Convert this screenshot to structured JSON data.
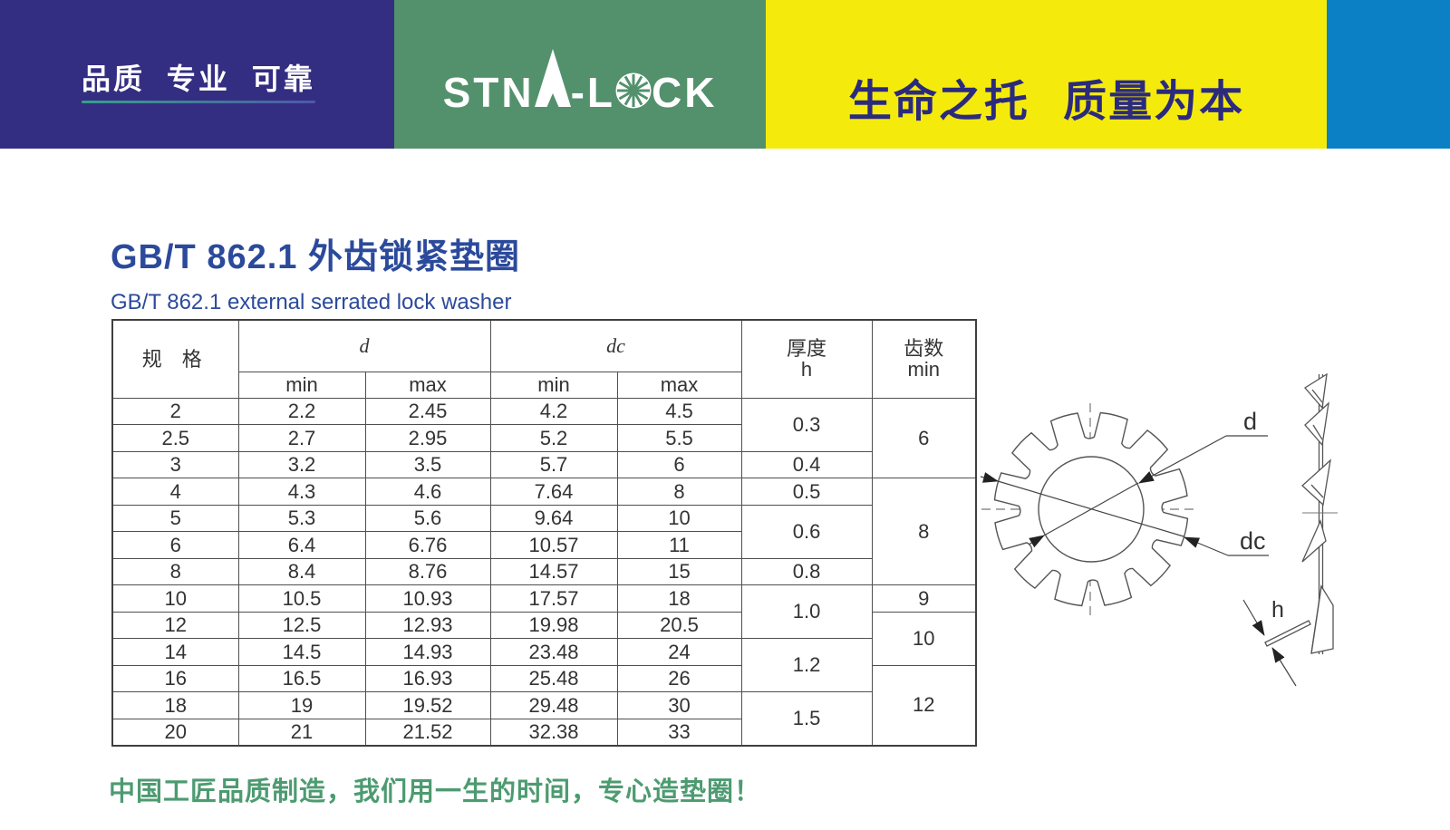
{
  "header": {
    "slogan_left": "品质 专业 可靠",
    "slogan_right": "生命之托 质量为本",
    "logo": {
      "part1": "STN",
      "a": "A",
      "part2": "-L",
      "o": "O",
      "part3": "CK",
      "full": "STNA-LOCK"
    },
    "colors": {
      "navy": "#342e82",
      "green": "#52916c",
      "yellow": "#f4eb0c",
      "blue": "#0c80c5"
    }
  },
  "title": {
    "zh": "GB/T 862.1 外齿锁紧垫圈",
    "en": "GB/T 862.1 external serrated lock washer"
  },
  "table": {
    "col_spec": "规 格",
    "col_d": "d",
    "col_dc": "dc",
    "col_h_line1": "厚度",
    "col_h_line2": "h",
    "col_teeth_line1": "齿数",
    "col_teeth_line2": "min",
    "sub_min": "min",
    "sub_max": "max",
    "rows": [
      {
        "spec": "2",
        "dmin": "2.2",
        "dmax": "2.45",
        "dcmin": "4.2",
        "dcmax": "4.5"
      },
      {
        "spec": "2.5",
        "dmin": "2.7",
        "dmax": "2.95",
        "dcmin": "5.2",
        "dcmax": "5.5"
      },
      {
        "spec": "3",
        "dmin": "3.2",
        "dmax": "3.5",
        "dcmin": "5.7",
        "dcmax": "6"
      },
      {
        "spec": "4",
        "dmin": "4.3",
        "dmax": "4.6",
        "dcmin": "7.64",
        "dcmax": "8"
      },
      {
        "spec": "5",
        "dmin": "5.3",
        "dmax": "5.6",
        "dcmin": "9.64",
        "dcmax": "10"
      },
      {
        "spec": "6",
        "dmin": "6.4",
        "dmax": "6.76",
        "dcmin": "10.57",
        "dcmax": "11"
      },
      {
        "spec": "8",
        "dmin": "8.4",
        "dmax": "8.76",
        "dcmin": "14.57",
        "dcmax": "15"
      },
      {
        "spec": "10",
        "dmin": "10.5",
        "dmax": "10.93",
        "dcmin": "17.57",
        "dcmax": "18"
      },
      {
        "spec": "12",
        "dmin": "12.5",
        "dmax": "12.93",
        "dcmin": "19.98",
        "dcmax": "20.5"
      },
      {
        "spec": "14",
        "dmin": "14.5",
        "dmax": "14.93",
        "dcmin": "23.48",
        "dcmax": "24"
      },
      {
        "spec": "16",
        "dmin": "16.5",
        "dmax": "16.93",
        "dcmin": "25.48",
        "dcmax": "26"
      },
      {
        "spec": "18",
        "dmin": "19",
        "dmax": "19.52",
        "dcmin": "29.48",
        "dcmax": "30"
      },
      {
        "spec": "20",
        "dmin": "21",
        "dmax": "21.52",
        "dcmin": "32.38",
        "dcmax": "33"
      }
    ],
    "h_values": [
      "0.3",
      "0.4",
      "0.5",
      "0.6",
      "0.8",
      "1.0",
      "1.2",
      "1.5"
    ],
    "teeth_values": [
      "6",
      "8",
      "9",
      "10",
      "12"
    ]
  },
  "diagram": {
    "label_d": "d",
    "label_dc": "dc",
    "label_h": "h"
  },
  "footer": {
    "tagline": "中国工匠品质制造，我们用一生的时间，专心造垫圈！"
  }
}
